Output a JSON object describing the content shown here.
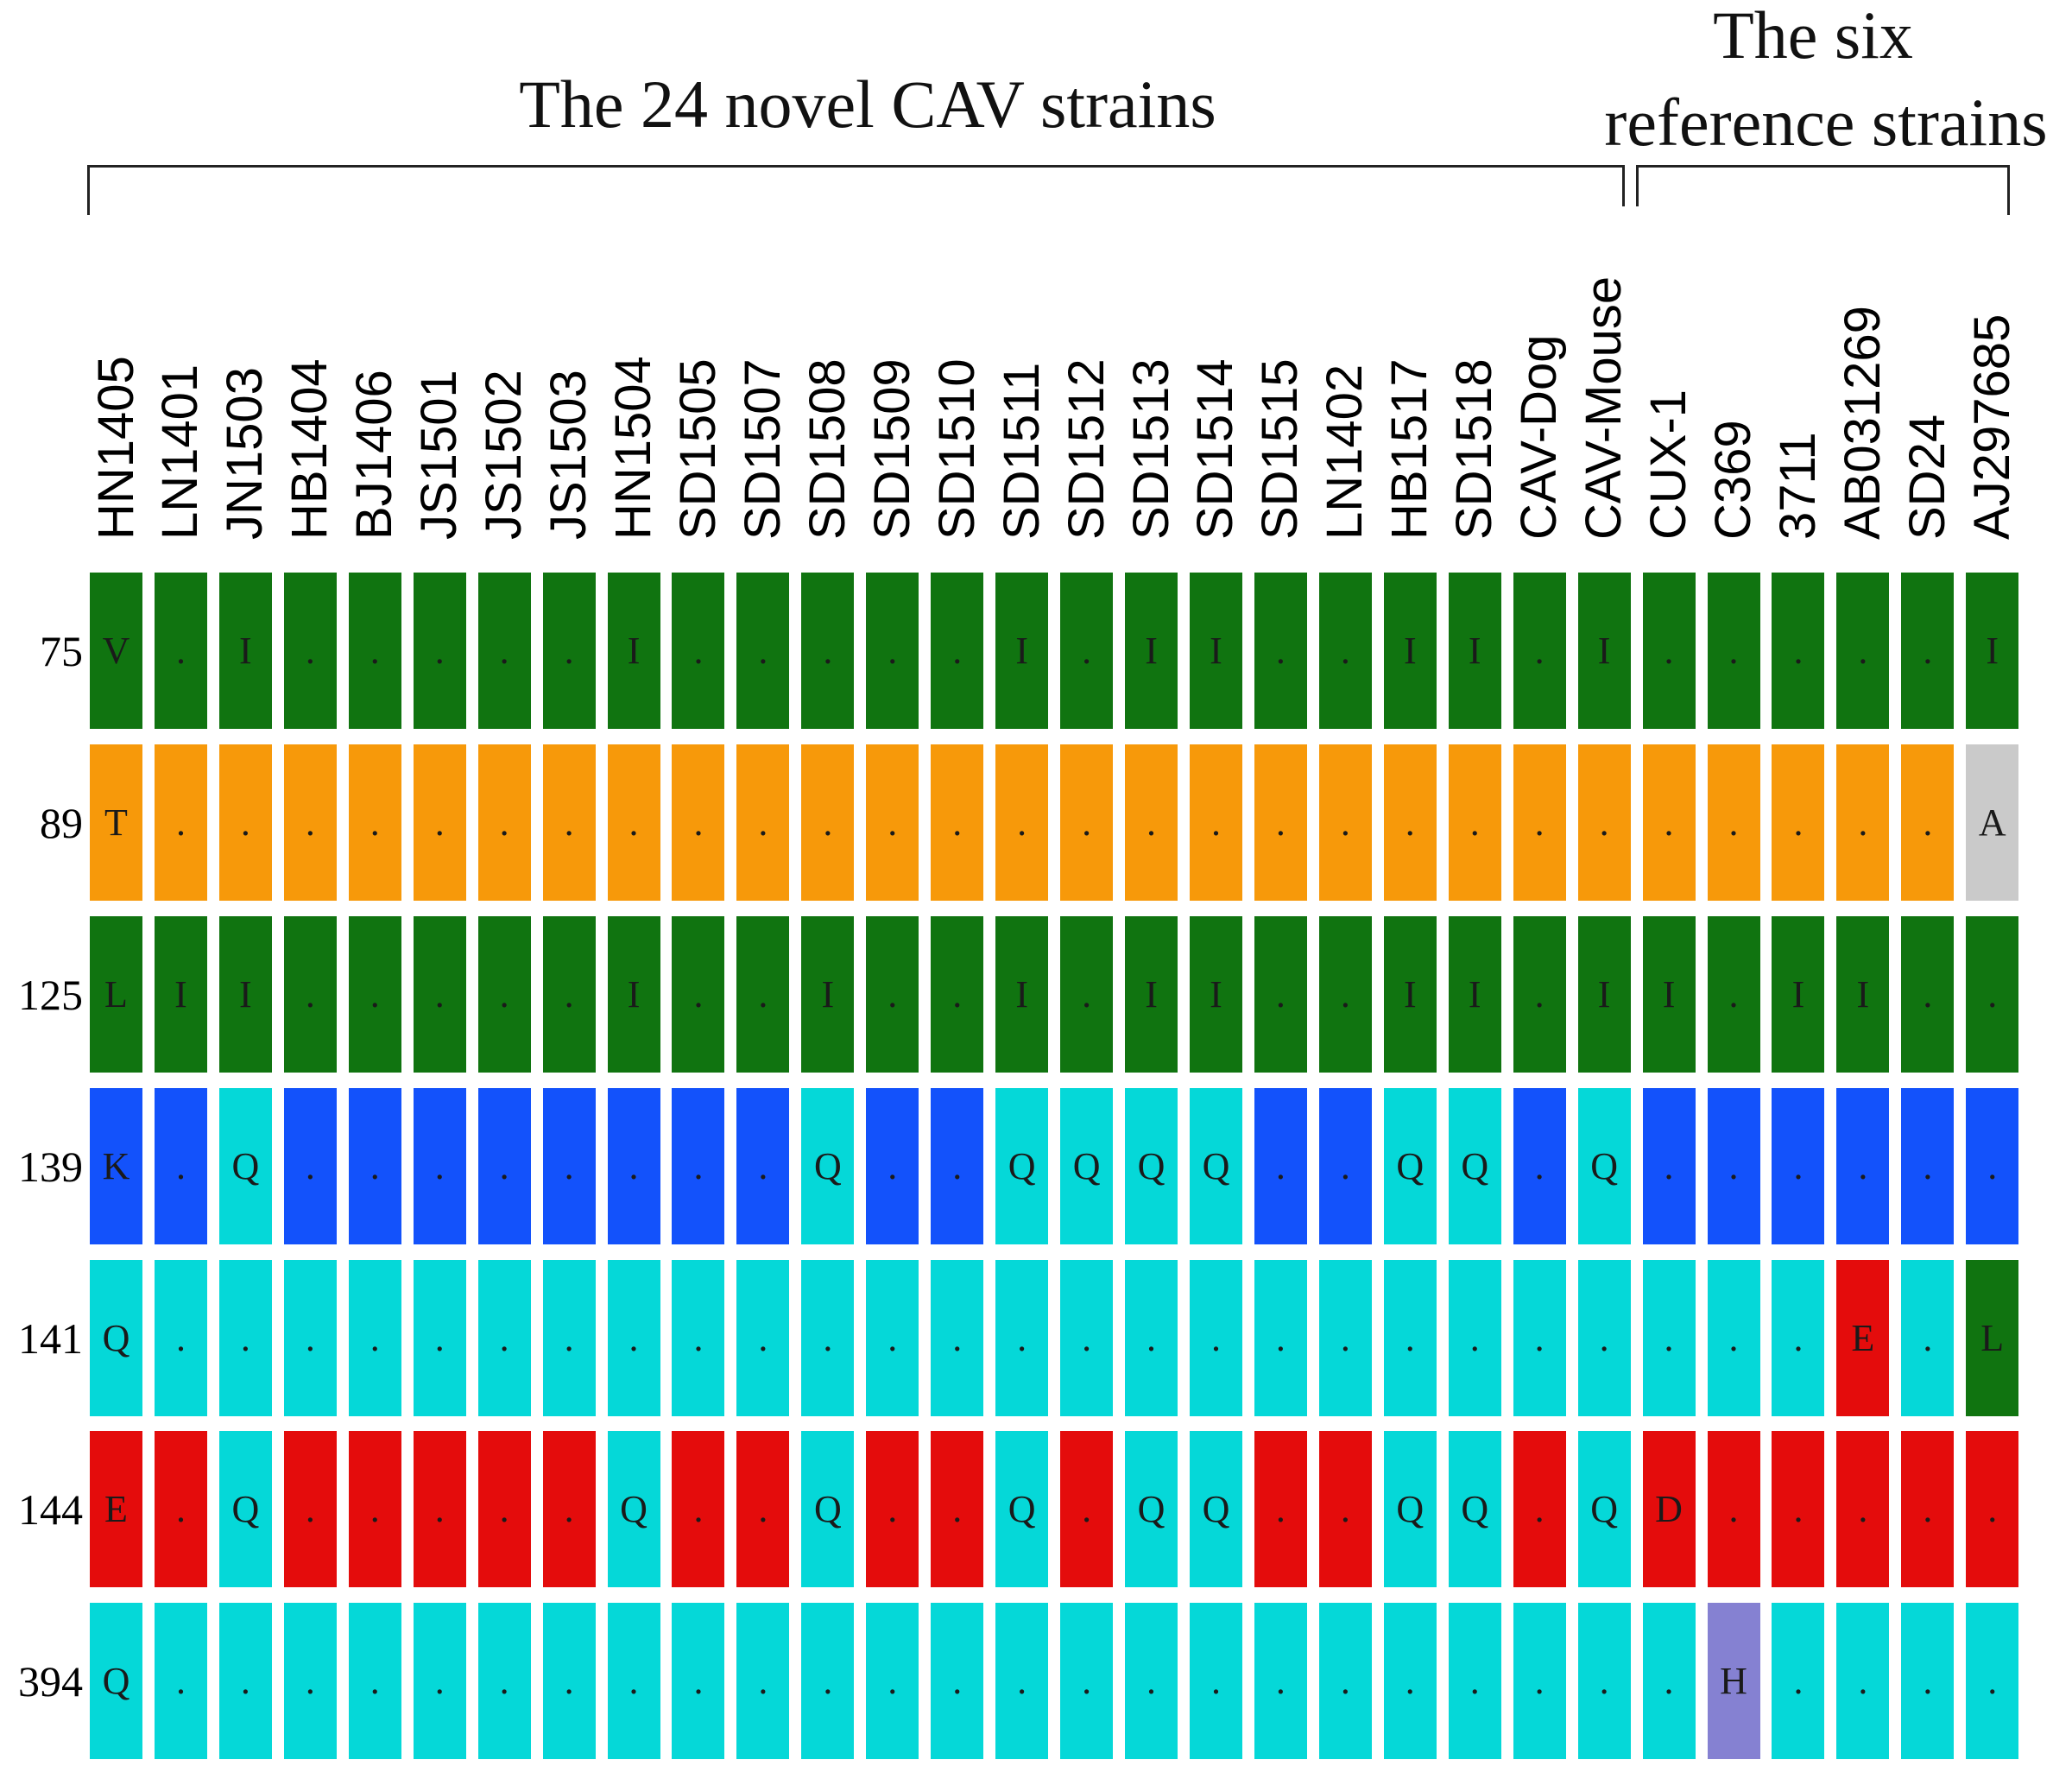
{
  "headers": {
    "novel": "The 24 novel CAV strains",
    "reference_line1": "The six",
    "reference_line2": "reference strains"
  },
  "strains": [
    "HN1405",
    "LN1401",
    "JN1503",
    "HB1404",
    "BJ1406",
    "JS1501",
    "JS1502",
    "JS1503",
    "HN1504",
    "SD1505",
    "SD1507",
    "SD1508",
    "SD1509",
    "SD1510",
    "SD1511",
    "SD1512",
    "SD1513",
    "SD1514",
    "SD1515",
    "LN1402",
    "HB1517",
    "SD1518",
    "CAV-Dog",
    "CAV-Mouse",
    "CUX-1",
    "C369",
    "3711",
    "AB031269",
    "SD24",
    "AJ297685"
  ],
  "colors": {
    "g": "#107410",
    "o": "#f7990a",
    "b": "#1352fb",
    "c": "#05d8d8",
    "r": "#e40c0c",
    "gray": "#cacaca",
    "p": "#8581d2"
  },
  "rows": [
    {
      "position": "75",
      "residues": [
        "V",
        ".",
        "I",
        ".",
        ".",
        ".",
        ".",
        ".",
        "I",
        ".",
        ".",
        ".",
        ".",
        ".",
        "I",
        ".",
        "I",
        "I",
        ".",
        ".",
        "I",
        "I",
        ".",
        "I",
        ".",
        ".",
        ".",
        ".",
        ".",
        "I"
      ],
      "color_keys": [
        "g",
        "g",
        "g",
        "g",
        "g",
        "g",
        "g",
        "g",
        "g",
        "g",
        "g",
        "g",
        "g",
        "g",
        "g",
        "g",
        "g",
        "g",
        "g",
        "g",
        "g",
        "g",
        "g",
        "g",
        "g",
        "g",
        "g",
        "g",
        "g",
        "g"
      ]
    },
    {
      "position": "89",
      "residues": [
        "T",
        ".",
        ".",
        ".",
        ".",
        ".",
        ".",
        ".",
        ".",
        ".",
        ".",
        ".",
        ".",
        ".",
        ".",
        ".",
        ".",
        ".",
        ".",
        ".",
        ".",
        ".",
        ".",
        ".",
        ".",
        ".",
        ".",
        ".",
        ".",
        "A"
      ],
      "color_keys": [
        "o",
        "o",
        "o",
        "o",
        "o",
        "o",
        "o",
        "o",
        "o",
        "o",
        "o",
        "o",
        "o",
        "o",
        "o",
        "o",
        "o",
        "o",
        "o",
        "o",
        "o",
        "o",
        "o",
        "o",
        "o",
        "o",
        "o",
        "o",
        "o",
        "gray"
      ]
    },
    {
      "position": "125",
      "residues": [
        "L",
        "I",
        "I",
        ".",
        ".",
        ".",
        ".",
        ".",
        "I",
        ".",
        ".",
        "I",
        ".",
        ".",
        "I",
        ".",
        "I",
        "I",
        ".",
        ".",
        "I",
        "I",
        ".",
        "I",
        "I",
        ".",
        "I",
        "I",
        ".",
        "."
      ],
      "color_keys": [
        "g",
        "g",
        "g",
        "g",
        "g",
        "g",
        "g",
        "g",
        "g",
        "g",
        "g",
        "g",
        "g",
        "g",
        "g",
        "g",
        "g",
        "g",
        "g",
        "g",
        "g",
        "g",
        "g",
        "g",
        "g",
        "g",
        "g",
        "g",
        "g",
        "g"
      ]
    },
    {
      "position": "139",
      "residues": [
        "K",
        ".",
        "Q",
        ".",
        ".",
        ".",
        ".",
        ".",
        ".",
        ".",
        ".",
        "Q",
        ".",
        ".",
        "Q",
        "Q",
        "Q",
        "Q",
        ".",
        ".",
        "Q",
        "Q",
        ".",
        "Q",
        ".",
        ".",
        ".",
        ".",
        ".",
        "."
      ],
      "color_keys": [
        "b",
        "b",
        "c",
        "b",
        "b",
        "b",
        "b",
        "b",
        "b",
        "b",
        "b",
        "c",
        "b",
        "b",
        "c",
        "c",
        "c",
        "c",
        "b",
        "b",
        "c",
        "c",
        "b",
        "c",
        "b",
        "b",
        "b",
        "b",
        "b",
        "b"
      ]
    },
    {
      "position": "141",
      "residues": [
        "Q",
        ".",
        ".",
        ".",
        ".",
        ".",
        ".",
        ".",
        ".",
        ".",
        ".",
        ".",
        ".",
        ".",
        ".",
        ".",
        ".",
        ".",
        ".",
        ".",
        ".",
        ".",
        ".",
        ".",
        ".",
        ".",
        ".",
        "E",
        ".",
        "L"
      ],
      "color_keys": [
        "c",
        "c",
        "c",
        "c",
        "c",
        "c",
        "c",
        "c",
        "c",
        "c",
        "c",
        "c",
        "c",
        "c",
        "c",
        "c",
        "c",
        "c",
        "c",
        "c",
        "c",
        "c",
        "c",
        "c",
        "c",
        "c",
        "c",
        "r",
        "c",
        "g"
      ]
    },
    {
      "position": "144",
      "residues": [
        "E",
        ".",
        "Q",
        ".",
        ".",
        ".",
        ".",
        ".",
        "Q",
        ".",
        ".",
        "Q",
        ".",
        ".",
        "Q",
        ".",
        "Q",
        "Q",
        ".",
        ".",
        "Q",
        "Q",
        ".",
        "Q",
        "D",
        ".",
        ".",
        ".",
        ".",
        "."
      ],
      "color_keys": [
        "r",
        "r",
        "c",
        "r",
        "r",
        "r",
        "r",
        "r",
        "c",
        "r",
        "r",
        "c",
        "r",
        "r",
        "c",
        "r",
        "c",
        "c",
        "r",
        "r",
        "c",
        "c",
        "r",
        "c",
        "r",
        "r",
        "r",
        "r",
        "r",
        "r"
      ]
    },
    {
      "position": "394",
      "residues": [
        "Q",
        ".",
        ".",
        ".",
        ".",
        ".",
        ".",
        ".",
        ".",
        ".",
        ".",
        ".",
        ".",
        ".",
        ".",
        ".",
        ".",
        ".",
        ".",
        ".",
        ".",
        ".",
        ".",
        ".",
        ".",
        "H",
        ".",
        ".",
        ".",
        "."
      ],
      "color_keys": [
        "c",
        "c",
        "c",
        "c",
        "c",
        "c",
        "c",
        "c",
        "c",
        "c",
        "c",
        "c",
        "c",
        "c",
        "c",
        "c",
        "c",
        "c",
        "c",
        "c",
        "c",
        "c",
        "c",
        "c",
        "c",
        "p",
        "c",
        "c",
        "c",
        "c"
      ]
    }
  ]
}
